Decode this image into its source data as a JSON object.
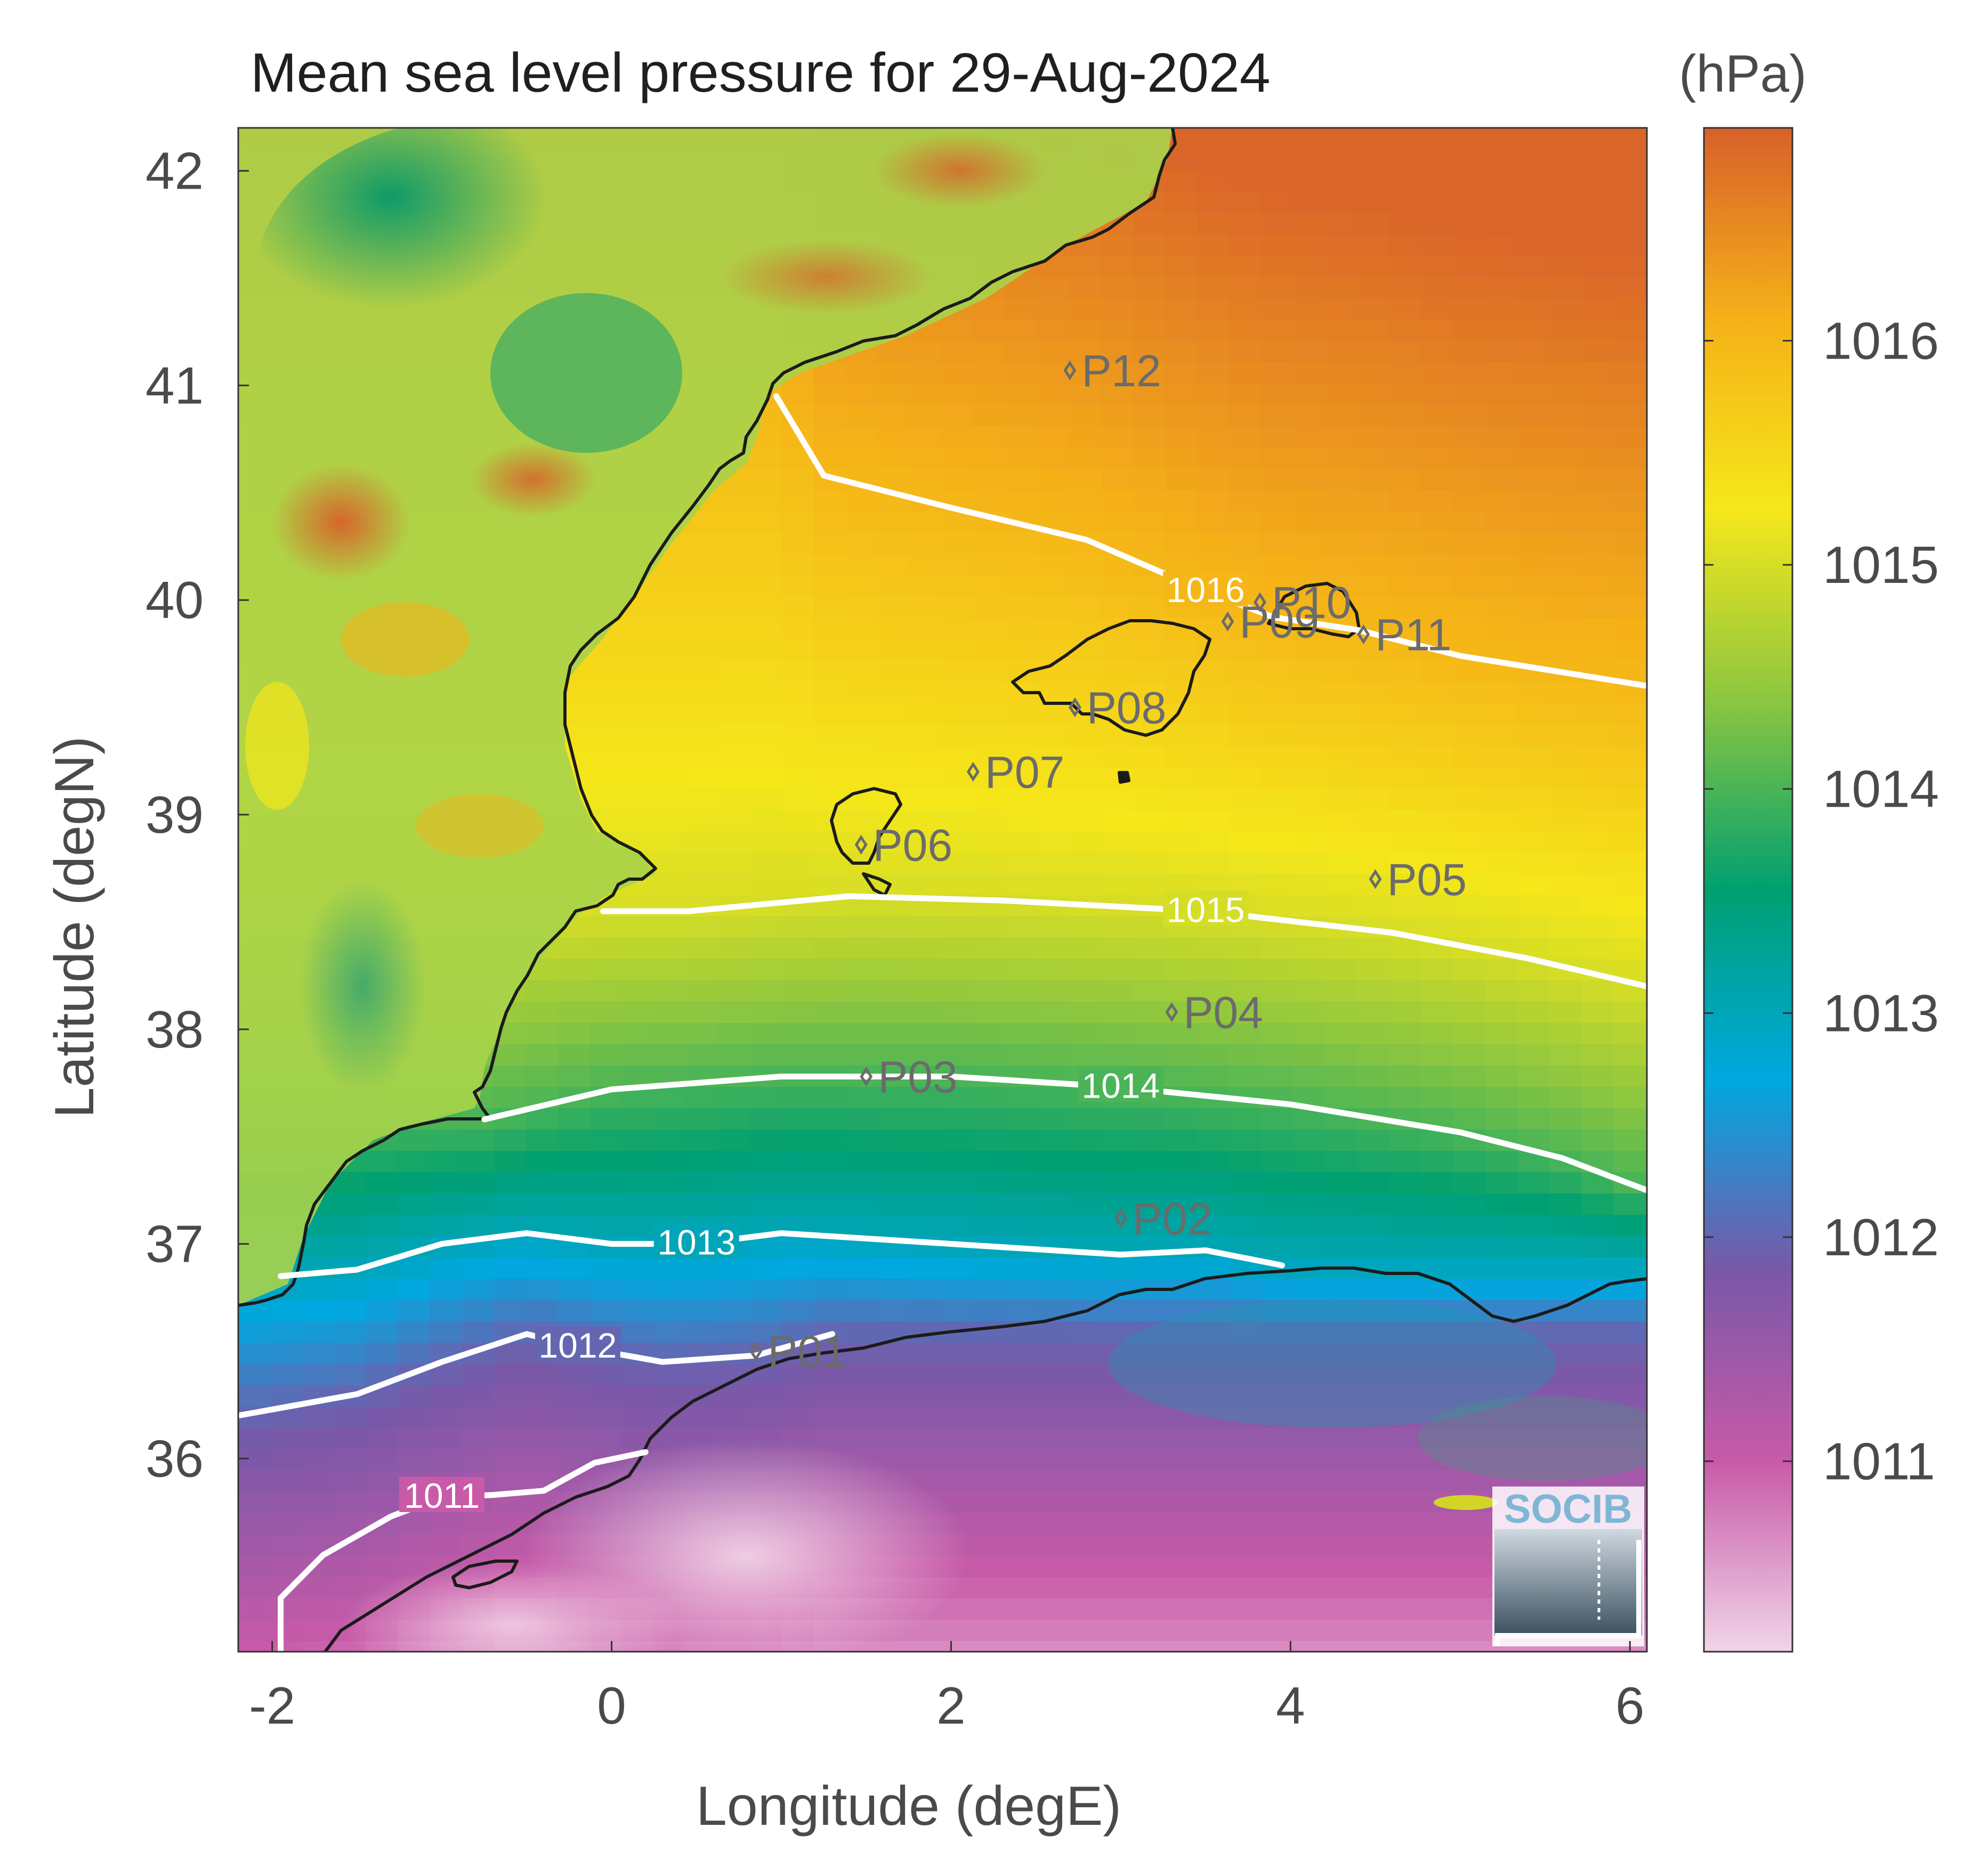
{
  "title": "Mean sea level pressure for 29-Aug-2024",
  "colorbar": {
    "unit_label": "(hPa)",
    "ticks": [
      "1011",
      "1012",
      "1013",
      "1014",
      "1015",
      "1016"
    ],
    "tick_values": [
      1011,
      1012,
      1013,
      1014,
      1015,
      1016
    ],
    "range": [
      1010.15,
      1016.95
    ],
    "colors": [
      "#f0d5e8",
      "#c85aa8",
      "#7a58a8",
      "#00a8e0",
      "#00a070",
      "#8cc640",
      "#f5e71a",
      "#f5b118",
      "#d8602a"
    ]
  },
  "axes": {
    "xlabel": "Longitude (degE)",
    "ylabel": "Latitude (degN)",
    "xlim": [
      -2.2,
      6.1
    ],
    "ylim": [
      35.1,
      42.2
    ],
    "xticks": [
      "-2",
      "0",
      "2",
      "4",
      "6"
    ],
    "xtick_values": [
      -2,
      0,
      2,
      4,
      6
    ],
    "yticks": [
      "36",
      "37",
      "38",
      "39",
      "40",
      "41",
      "42"
    ],
    "ytick_values": [
      36,
      37,
      38,
      39,
      40,
      41,
      42
    ]
  },
  "map": {
    "colormap": "pressure field: magenta-purple-blue-green-yellow-orange",
    "land_field": "noisy high-resolution pressure over land",
    "logo_text": "SOCIB"
  },
  "chart_data": {
    "type": "heatmap",
    "title": "Mean sea level pressure for 29-Aug-2024",
    "xlabel": "Longitude (degE)",
    "ylabel": "Latitude (degN)",
    "zlabel": "(hPa)",
    "xlim": [
      -2.2,
      6.1
    ],
    "ylim": [
      35.1,
      42.2
    ],
    "zlim": [
      1010.15,
      1016.95
    ],
    "grid": false,
    "contour_levels": [
      1011,
      1012,
      1013,
      1014,
      1015,
      1016
    ],
    "contour_labels": [
      "1011",
      "1012",
      "1013",
      "1014",
      "1015",
      "1016"
    ],
    "contour_lines": [
      {
        "level": 1016,
        "points": [
          [
            0.97,
            40.95
          ],
          [
            1.25,
            40.58
          ],
          [
            2.0,
            40.43
          ],
          [
            2.8,
            40.28
          ],
          [
            3.5,
            40.04
          ],
          [
            3.9,
            39.92
          ],
          [
            4.4,
            39.86
          ],
          [
            5.0,
            39.74
          ],
          [
            6.1,
            39.6
          ]
        ]
      },
      {
        "level": 1015,
        "points": [
          [
            -0.05,
            38.55
          ],
          [
            0.45,
            38.55
          ],
          [
            1.4,
            38.62
          ],
          [
            2.3,
            38.6
          ],
          [
            3.5,
            38.55
          ],
          [
            4.6,
            38.45
          ],
          [
            5.4,
            38.33
          ],
          [
            6.1,
            38.2
          ]
        ]
      },
      {
        "level": 1014,
        "points": [
          [
            -0.75,
            37.58
          ],
          [
            0.0,
            37.72
          ],
          [
            1.0,
            37.78
          ],
          [
            2.0,
            37.78
          ],
          [
            3.0,
            37.73
          ],
          [
            4.0,
            37.65
          ],
          [
            5.0,
            37.52
          ],
          [
            5.6,
            37.4
          ],
          [
            6.1,
            37.25
          ]
        ]
      },
      {
        "level": 1013,
        "points": [
          [
            -1.95,
            36.85
          ],
          [
            -1.5,
            36.88
          ],
          [
            -1.0,
            37.0
          ],
          [
            -0.5,
            37.05
          ],
          [
            0.0,
            37.0
          ],
          [
            0.5,
            37.0
          ],
          [
            1.0,
            37.05
          ],
          [
            2.0,
            37.0
          ],
          [
            3.0,
            36.95
          ],
          [
            3.5,
            36.97
          ],
          [
            3.95,
            36.9
          ]
        ]
      },
      {
        "level": 1012,
        "points": [
          [
            -2.2,
            36.2
          ],
          [
            -1.5,
            36.3
          ],
          [
            -1.0,
            36.45
          ],
          [
            -0.5,
            36.58
          ],
          [
            -0.2,
            36.52
          ],
          [
            0.3,
            36.45
          ],
          [
            0.85,
            36.48
          ],
          [
            1.3,
            36.58
          ]
        ]
      },
      {
        "level": 1011,
        "points": [
          [
            -1.95,
            35.1
          ],
          [
            -1.95,
            35.35
          ],
          [
            -1.7,
            35.55
          ],
          [
            -1.3,
            35.73
          ],
          [
            -1.0,
            35.82
          ],
          [
            -0.7,
            35.83
          ],
          [
            -0.4,
            35.85
          ],
          [
            -0.1,
            35.98
          ],
          [
            0.2,
            36.03
          ]
        ]
      }
    ],
    "stations": [
      {
        "name": "P01",
        "lon": 0.85,
        "lat": 36.5
      },
      {
        "name": "P02",
        "lon": 3.0,
        "lat": 37.12
      },
      {
        "name": "P03",
        "lon": 1.5,
        "lat": 37.78
      },
      {
        "name": "P04",
        "lon": 3.3,
        "lat": 38.08
      },
      {
        "name": "P05",
        "lon": 4.5,
        "lat": 38.7
      },
      {
        "name": "P06",
        "lon": 1.47,
        "lat": 38.86
      },
      {
        "name": "P07",
        "lon": 2.13,
        "lat": 39.2
      },
      {
        "name": "P08",
        "lon": 2.73,
        "lat": 39.5
      },
      {
        "name": "P09",
        "lon": 3.63,
        "lat": 39.9
      },
      {
        "name": "P10",
        "lon": 3.82,
        "lat": 39.99
      },
      {
        "name": "P11",
        "lon": 4.43,
        "lat": 39.84
      },
      {
        "name": "P12",
        "lon": 2.7,
        "lat": 41.07
      }
    ]
  }
}
